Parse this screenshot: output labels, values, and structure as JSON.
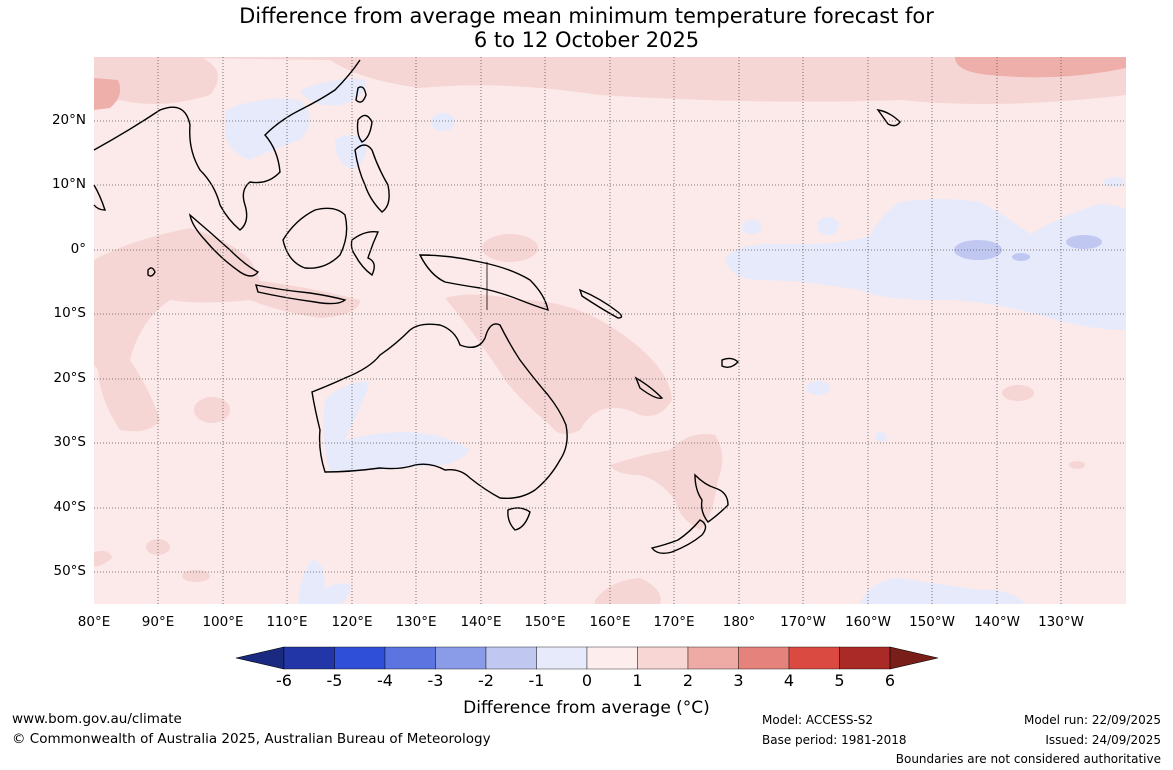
{
  "title": {
    "line1": "Difference from average mean minimum temperature forecast for",
    "line2": "6 to 12 October 2025"
  },
  "map": {
    "lon_ticks": [
      "80°E",
      "90°E",
      "100°E",
      "110°E",
      "120°E",
      "130°E",
      "140°E",
      "150°E",
      "160°E",
      "170°E",
      "180°",
      "170°W",
      "160°W",
      "150°W",
      "140°W",
      "130°W"
    ],
    "lat_ticks": [
      "20°N",
      "10°N",
      "0°",
      "10°S",
      "20°S",
      "30°S",
      "40°S",
      "50°S"
    ],
    "background_color": "#fbeae9"
  },
  "colorbar": {
    "ticks": [
      "-6",
      "-5",
      "-4",
      "-3",
      "-2",
      "-1",
      "0",
      "1",
      "2",
      "3",
      "4",
      "5",
      "6"
    ],
    "colors": [
      "#2236a8",
      "#2f4fd8",
      "#5b74e0",
      "#8a9ce8",
      "#c0c8f2",
      "#e6eafb",
      "#fdeeed",
      "#f7d6d4",
      "#eeaaa5",
      "#e5827c",
      "#da4a40",
      "#a92a26"
    ],
    "under_color": "#1a2a80",
    "over_color": "#7a1e1a",
    "label": "Difference from average (°C)"
  },
  "footer": {
    "website": "www.bom.gov.au/climate",
    "copyright": "© Commonwealth of Australia 2025, Australian Bureau of Meteorology",
    "model": "Model: ACCESS-S2",
    "base_period": "Base period: 1981-2018",
    "model_run": "Model run: 22/09/2025",
    "issued": "Issued: 24/09/2025",
    "disclaimer": "Boundaries are not considered authoritative"
  }
}
